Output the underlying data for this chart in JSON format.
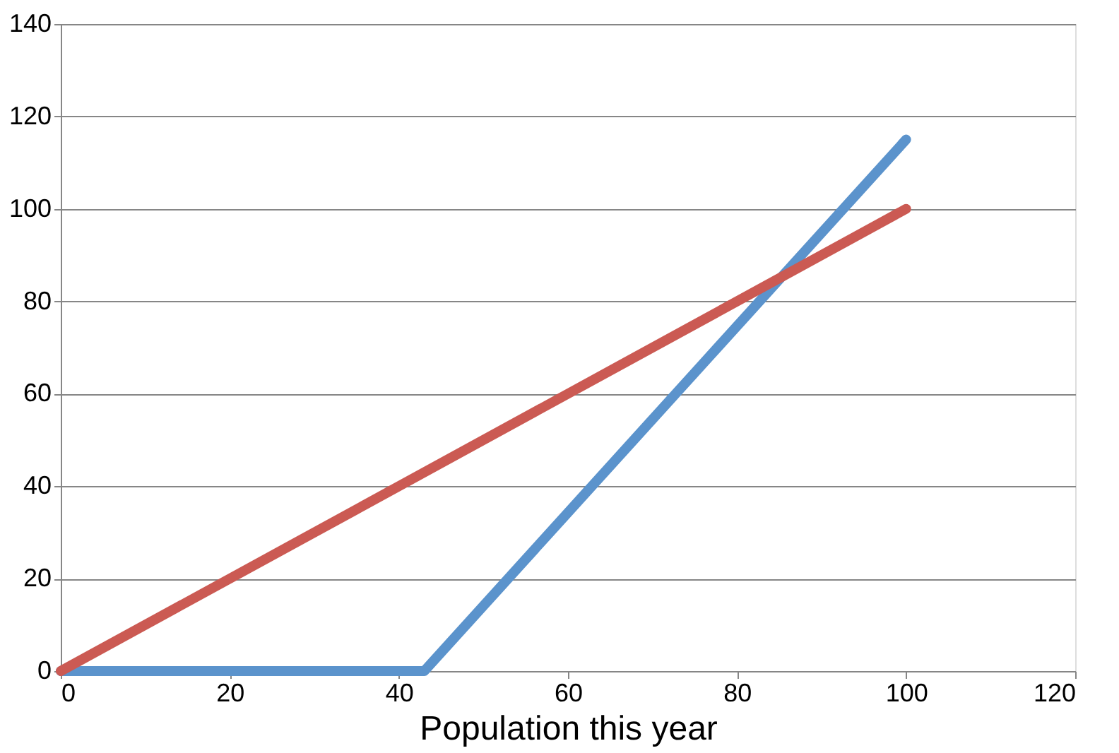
{
  "chart_data": {
    "type": "line",
    "xlabel": "Population this year",
    "series": [
      {
        "color": "#5b93cc",
        "x": [
          0,
          43,
          100
        ],
        "values": [
          0,
          0,
          115
        ]
      },
      {
        "color": "#cb5a53",
        "x": [
          0,
          100
        ],
        "values": [
          0,
          100
        ]
      }
    ],
    "xlim": [
      0,
      120
    ],
    "xticks": [
      0,
      20,
      40,
      60,
      80,
      100,
      120
    ],
    "ylim": [
      0,
      140
    ],
    "yticks": [
      0,
      20,
      40,
      60,
      80,
      100,
      120,
      140
    ],
    "grid": "y",
    "marker": "none",
    "line_style": "solid"
  }
}
